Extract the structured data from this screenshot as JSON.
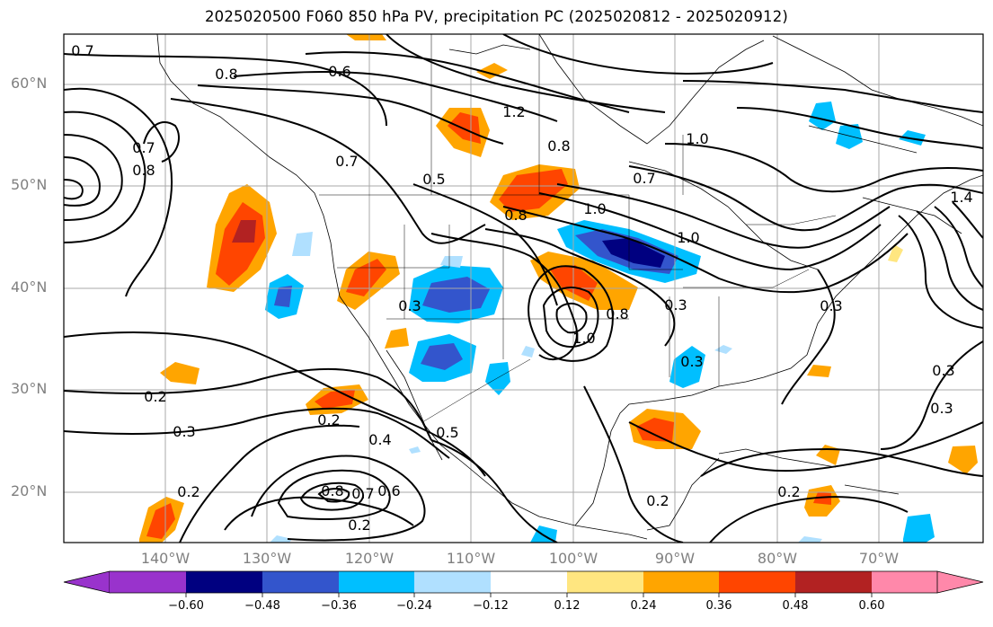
{
  "title": "2025020500 F060 850 hPa PV, precipitation PC (2025020812 - 2025020912)",
  "latitude_labels": [
    "60°N",
    "50°N",
    "40°N",
    "30°N",
    "20°N"
  ],
  "longitude_labels": [
    "140°W",
    "130°W",
    "120°W",
    "110°W",
    "100°W",
    "90°W",
    "80°W",
    "70°W"
  ],
  "contour_labels": [
    "0.8",
    "0.6",
    "0.7",
    "0.8",
    "0.7",
    "0.5",
    "1.2",
    "0.8",
    "0.7",
    "1.0",
    "0.8",
    "1.0",
    "0.3",
    "1.0",
    "0.8",
    "0.3",
    "0.3",
    "0.2",
    "0.2",
    "0.3",
    "0.4",
    "0.5",
    "0.8",
    "0.7",
    "0.6",
    "0.2",
    "0.2",
    "0.2",
    "0.3",
    "0.2",
    "0.3",
    "0.7",
    "1.4",
    "0.3",
    "1.0"
  ],
  "colorbar": {
    "ticks": [
      "−0.60",
      "−0.48",
      "−0.36",
      "−0.24",
      "−0.12",
      "0.12",
      "0.24",
      "0.36",
      "0.48",
      "0.60"
    ],
    "colors": [
      "#9933cc",
      "#000080",
      "#3355cc",
      "#00bfff",
      "#b0e0ff",
      "#ffffff",
      "#ffe680",
      "#ffa500",
      "#ff4500",
      "#b22222",
      "#ff88aa"
    ]
  }
}
